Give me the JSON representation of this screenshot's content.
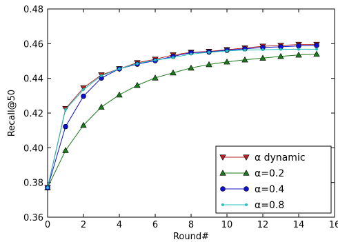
{
  "chart_data": {
    "type": "line",
    "xlabel": "Round#",
    "ylabel": "Recall@50",
    "xlim": [
      0,
      16
    ],
    "ylim": [
      0.36,
      0.48
    ],
    "xticks": [
      0,
      2,
      4,
      6,
      8,
      10,
      12,
      14,
      16
    ],
    "yticks": [
      0.36,
      0.38,
      0.4,
      0.42,
      0.44,
      0.46,
      0.48
    ],
    "xtick_labels": [
      "0",
      "2",
      "4",
      "6",
      "8",
      "10",
      "12",
      "14",
      "16"
    ],
    "ytick_labels": [
      "0.36",
      "0.38",
      "0.40",
      "0.42",
      "0.44",
      "0.46",
      "0.48"
    ],
    "grid": false,
    "legend_position": "bottom-right",
    "x": [
      0,
      1,
      2,
      3,
      4,
      5,
      6,
      7,
      8,
      9,
      10,
      11,
      12,
      13,
      14,
      15
    ],
    "series": [
      {
        "name": "α dynamic",
        "color": "#b22222",
        "marker": "triangle-down",
        "values": [
          0.377,
          0.4225,
          0.4345,
          0.442,
          0.4455,
          0.449,
          0.451,
          0.4535,
          0.455,
          0.4555,
          0.4565,
          0.4575,
          0.4585,
          0.459,
          0.4595,
          0.4595
        ]
      },
      {
        "name": "α=0.2",
        "color": "#1a7a1a",
        "marker": "triangle-up",
        "values": [
          0.377,
          0.3985,
          0.413,
          0.4235,
          0.4305,
          0.436,
          0.4403,
          0.4432,
          0.446,
          0.448,
          0.4495,
          0.4507,
          0.4517,
          0.4527,
          0.4535,
          0.454
        ]
      },
      {
        "name": "α=0.4",
        "color": "#1010cc",
        "marker": "circle",
        "values": [
          0.377,
          0.4122,
          0.4297,
          0.4402,
          0.4455,
          0.4482,
          0.4502,
          0.4527,
          0.4548,
          0.4552,
          0.4562,
          0.457,
          0.4578,
          0.4582,
          0.4587,
          0.459
        ]
      },
      {
        "name": "α=0.8",
        "color": "#20c0c0",
        "marker": "dot",
        "values": [
          0.377,
          0.422,
          0.4335,
          0.4415,
          0.4455,
          0.4485,
          0.4505,
          0.452,
          0.454,
          0.455,
          0.4558,
          0.4563,
          0.4565,
          0.4567,
          0.4568,
          0.4568
        ]
      }
    ]
  }
}
